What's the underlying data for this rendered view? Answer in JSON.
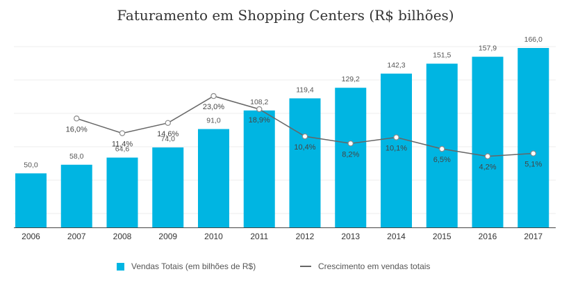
{
  "chart_data": {
    "type": "bar",
    "title": "Faturamento em Shopping Centers (R$ bilhões)",
    "categories": [
      "2006",
      "2007",
      "2008",
      "2009",
      "2010",
      "2011",
      "2012",
      "2013",
      "2014",
      "2015",
      "2016",
      "2017"
    ],
    "series": [
      {
        "name": "Vendas Totais (em bilhões de R$)",
        "type": "bar",
        "color": "#00b5e2",
        "values": [
          50.0,
          58.0,
          64.6,
          74.0,
          91.0,
          108.2,
          119.4,
          129.2,
          142.3,
          151.5,
          157.9,
          166.0
        ],
        "labels": [
          "50,0",
          "58,0",
          "64,6",
          "74,0",
          "91,0",
          "108,2",
          "119,4",
          "129,2",
          "142,3",
          "151,5",
          "157,9",
          "166,0"
        ]
      },
      {
        "name": "Crescimento em vendas totais",
        "type": "line",
        "color": "#666666",
        "values": [
          null,
          16.0,
          11.4,
          14.6,
          23.0,
          18.9,
          10.4,
          8.2,
          10.1,
          6.5,
          4.2,
          5.1
        ],
        "labels": [
          null,
          "16,0%",
          "11,4%",
          "14,6%",
          "23,0%",
          "18,9%",
          "10,4%",
          "8,2%",
          "10,1%",
          "6,5%",
          "4,2%",
          "5,1%"
        ]
      }
    ],
    "bar_axis": [
      0,
      166
    ],
    "growth_axis": [
      -18,
      38
    ],
    "grid": true,
    "legend_position": "bottom"
  }
}
